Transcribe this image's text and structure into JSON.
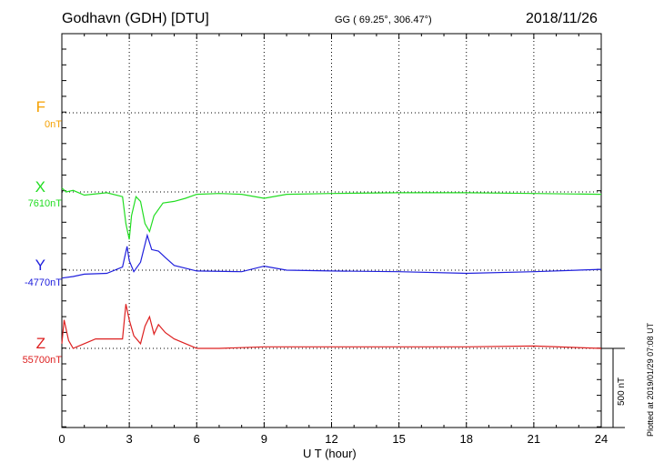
{
  "header": {
    "station": "Godhavn (GDH)  [DTU]",
    "coords": "GG ( 69.25°, 306.47°)",
    "date": "2018/11/26"
  },
  "plotted_note": "Plotted at 2019/01/29 07:08 UT",
  "scale_label": "500 nT",
  "chart_data": {
    "type": "line",
    "title": "Godhavn (GDH)  [DTU]",
    "xlabel": "U T (hour)",
    "ylabel": "",
    "xlim": [
      0,
      24
    ],
    "xticks": [
      0,
      3,
      6,
      9,
      12,
      15,
      18,
      21,
      24
    ],
    "x_tick_labels": [
      "0",
      "3",
      "6",
      "9",
      "12",
      "15",
      "18",
      "21",
      "24"
    ],
    "grid": true,
    "scale_bar_nT": 500,
    "series": [
      {
        "name": "F",
        "base_label": "0nT",
        "color": "#f5a000",
        "x": [],
        "values": []
      },
      {
        "name": "X",
        "base_label": "7610nT",
        "color": "#22dd22",
        "x": [
          0,
          0.2,
          0.5,
          1,
          2,
          2.7,
          2.85,
          3.0,
          3.1,
          3.3,
          3.5,
          3.7,
          3.9,
          4.1,
          4.5,
          5,
          5.5,
          6,
          7,
          8,
          9,
          10,
          12,
          15,
          18,
          21,
          24
        ],
        "values": [
          25,
          0,
          10,
          -20,
          -5,
          -30,
          -200,
          -300,
          -150,
          -30,
          -60,
          -200,
          -250,
          -150,
          -70,
          -60,
          -40,
          -15,
          -10,
          -15,
          -40,
          -15,
          -10,
          -5,
          -5,
          -10,
          -15
        ]
      },
      {
        "name": "Y",
        "base_label": "-4770nT",
        "color": "#2020dd",
        "x": [
          0,
          0.5,
          1,
          2,
          2.7,
          2.9,
          3.0,
          3.2,
          3.5,
          3.8,
          4.0,
          4.3,
          4.6,
          5,
          6,
          8,
          9,
          10,
          12,
          15,
          18,
          21,
          24
        ],
        "values": [
          -50,
          -40,
          -25,
          -20,
          20,
          150,
          60,
          -10,
          50,
          220,
          130,
          120,
          80,
          30,
          -5,
          -10,
          25,
          0,
          -5,
          -10,
          -20,
          -10,
          5
        ]
      },
      {
        "name": "Z",
        "base_label": "55700nT",
        "color": "#dd2020",
        "x": [
          0,
          0.1,
          0.3,
          0.5,
          1,
          1.5,
          2,
          2.7,
          2.85,
          3.0,
          3.2,
          3.5,
          3.7,
          3.9,
          4.1,
          4.3,
          4.6,
          5,
          6,
          7,
          9,
          12,
          15,
          18,
          21,
          24
        ],
        "values": [
          30,
          180,
          50,
          0,
          30,
          60,
          60,
          60,
          280,
          180,
          80,
          30,
          140,
          200,
          90,
          150,
          100,
          60,
          0,
          0,
          10,
          10,
          10,
          10,
          15,
          0
        ]
      }
    ]
  }
}
